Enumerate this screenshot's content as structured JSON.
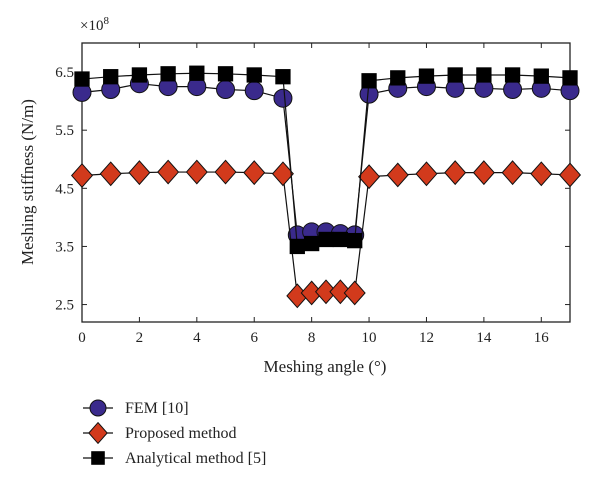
{
  "chart_data": {
    "type": "line",
    "title": "",
    "xlabel": "Meshing angle (°)",
    "ylabel": "Meshing stiffness (N/m)",
    "y_multiplier": "×10",
    "y_multiplier_exp": "8",
    "xlim": [
      0,
      17
    ],
    "ylim": [
      2.2,
      7.0
    ],
    "xticks": [
      0,
      2,
      4,
      6,
      8,
      10,
      12,
      14,
      16
    ],
    "yticks": [
      2.5,
      3.5,
      4.5,
      5.5,
      6.5
    ],
    "ytick_labels": [
      "2.5",
      "3.5",
      "4.5",
      "5.5",
      "6.5"
    ],
    "grid": false,
    "legend_position": "bottom-left, below plot",
    "x": [
      0,
      1,
      2,
      3,
      4,
      5,
      6,
      7,
      7.5,
      8,
      8.5,
      9,
      9.5,
      10,
      11,
      12,
      13,
      14,
      15,
      16,
      17
    ],
    "series": [
      {
        "name": "FEM [10]",
        "marker": "circle",
        "color": "#3a2a8c",
        "values": [
          6.15,
          6.2,
          6.3,
          6.25,
          6.25,
          6.2,
          6.18,
          6.05,
          3.7,
          3.75,
          3.75,
          3.72,
          3.7,
          6.12,
          6.22,
          6.25,
          6.22,
          6.22,
          6.2,
          6.22,
          6.18
        ]
      },
      {
        "name": "Proposed method",
        "marker": "diamond",
        "color": "#d23a1c",
        "values": [
          4.72,
          4.75,
          4.77,
          4.78,
          4.78,
          4.78,
          4.77,
          4.75,
          2.65,
          2.7,
          2.72,
          2.72,
          2.7,
          4.7,
          4.73,
          4.75,
          4.77,
          4.77,
          4.77,
          4.75,
          4.73
        ]
      },
      {
        "name": "Analytical method [5]",
        "marker": "square",
        "color": "#000000",
        "values": [
          6.38,
          6.42,
          6.45,
          6.47,
          6.48,
          6.47,
          6.45,
          6.42,
          3.5,
          3.55,
          3.62,
          3.62,
          3.6,
          6.35,
          6.4,
          6.43,
          6.45,
          6.45,
          6.45,
          6.43,
          6.4
        ]
      }
    ]
  }
}
